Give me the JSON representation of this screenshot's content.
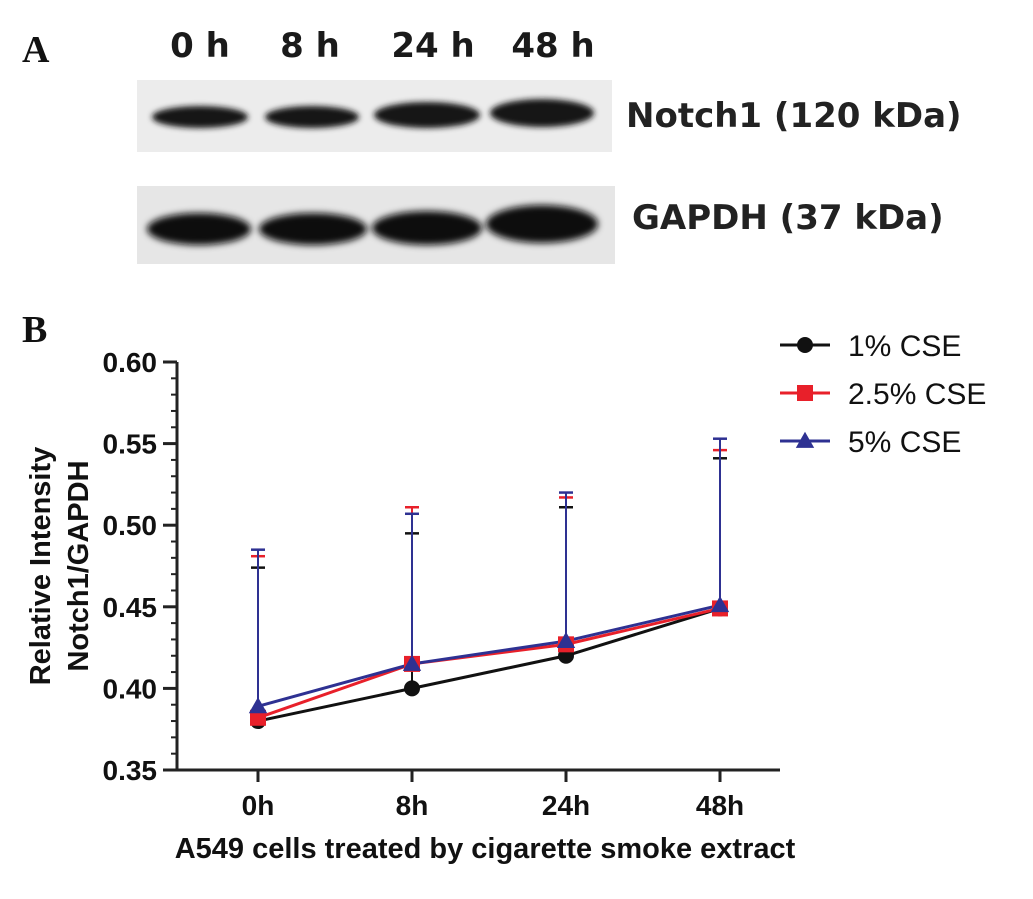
{
  "panels": {
    "a": {
      "letter": "A"
    },
    "b": {
      "letter": "B"
    }
  },
  "blot": {
    "lanes": [
      "0 h",
      "8 h",
      "24 h",
      "48 h"
    ],
    "bands": [
      {
        "label": "Notch1 (120 kDa)"
      },
      {
        "label": "GAPDH (37 kDa)"
      }
    ]
  },
  "chart_data": {
    "type": "line",
    "title": "",
    "xlabel": "A549 cells treated by cigarette smoke extract",
    "ylabel_lines": [
      "Relative Intensity",
      "Notch1/GAPDH"
    ],
    "categories": [
      "0h",
      "8h",
      "24h",
      "48h"
    ],
    "ylim": [
      0.35,
      0.6
    ],
    "yticks": [
      "0.35",
      "0.40",
      "0.45",
      "0.50",
      "0.55",
      "0.60"
    ],
    "grid": false,
    "legend_position": "top-right",
    "series": [
      {
        "name": "1% CSE",
        "color": "#111111",
        "marker": "circle",
        "values": [
          0.38,
          0.4,
          0.42,
          0.449
        ],
        "err_upper": [
          0.474,
          0.495,
          0.511,
          0.541
        ]
      },
      {
        "name": "2.5% CSE",
        "color": "#e8202a",
        "marker": "square",
        "values": [
          0.382,
          0.415,
          0.427,
          0.449
        ],
        "err_upper": [
          0.481,
          0.511,
          0.517,
          0.546
        ]
      },
      {
        "name": "5% CSE",
        "color": "#2e3192",
        "marker": "triangle",
        "values": [
          0.389,
          0.415,
          0.429,
          0.451
        ],
        "err_upper": [
          0.485,
          0.507,
          0.52,
          0.553
        ]
      }
    ]
  }
}
